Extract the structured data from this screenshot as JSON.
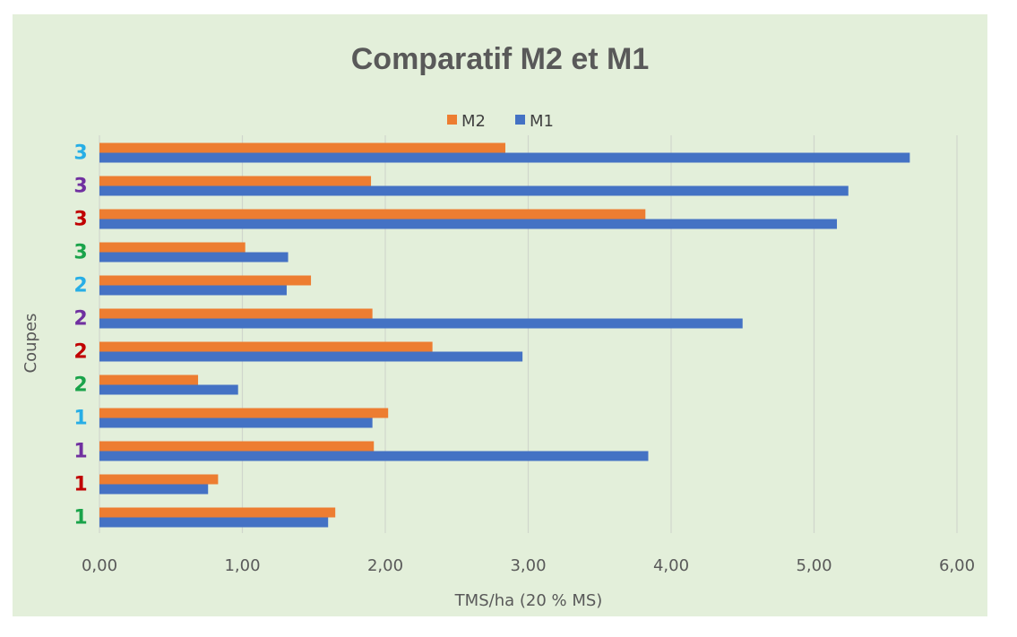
{
  "chart_data": {
    "type": "bar",
    "orientation": "horizontal",
    "title": "Comparatif M2 et M1",
    "xlabel": "TMS/ha (20 % MS)",
    "ylabel": "Coupes",
    "xlim": [
      0,
      6
    ],
    "xticks": [
      "0,00",
      "1,00",
      "2,00",
      "3,00",
      "4,00",
      "5,00",
      "6,00"
    ],
    "grid": true,
    "legend_position": "top",
    "categories": [
      "1",
      "1",
      "1",
      "1",
      "2",
      "2",
      "2",
      "2",
      "3",
      "3",
      "3",
      "3"
    ],
    "category_colors": [
      "#1aa34a",
      "#c00000",
      "#7030a0",
      "#27aee6",
      "#1aa34a",
      "#c00000",
      "#7030a0",
      "#27aee6",
      "#1aa34a",
      "#c00000",
      "#7030a0",
      "#27aee6"
    ],
    "series": [
      {
        "name": "M2",
        "color": "#ed7d31",
        "values": [
          1.65,
          0.83,
          1.92,
          2.02,
          0.69,
          2.33,
          1.91,
          1.48,
          1.02,
          3.82,
          1.9,
          2.84
        ]
      },
      {
        "name": "M1",
        "color": "#4472c4",
        "values": [
          1.6,
          0.76,
          3.84,
          1.91,
          0.97,
          2.96,
          4.5,
          1.31,
          1.32,
          5.16,
          5.24,
          5.67
        ]
      }
    ]
  }
}
